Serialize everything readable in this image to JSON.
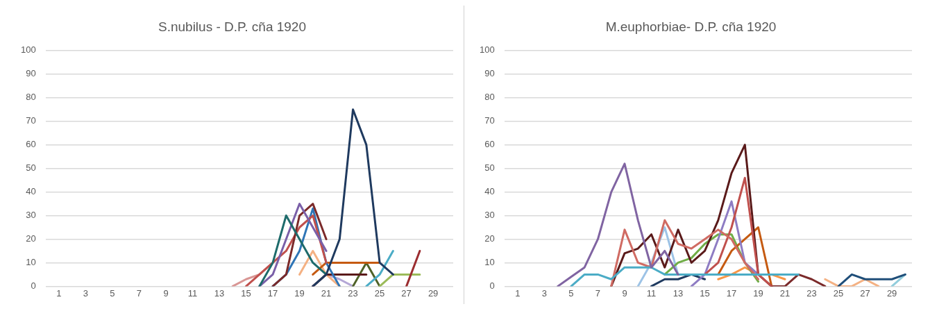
{
  "chart_data": [
    {
      "type": "line",
      "title": "S.nubilus - D.P. cña 1920",
      "xlim": [
        0,
        30.5
      ],
      "xticks": [
        1,
        3,
        5,
        7,
        9,
        11,
        13,
        15,
        17,
        19,
        21,
        23,
        25,
        27,
        29
      ],
      "ylim": [
        0,
        100
      ],
      "yticks": [
        0,
        10,
        20,
        30,
        40,
        50,
        60,
        70,
        80,
        90,
        100
      ],
      "grid": "y",
      "marker": "none",
      "line_style": "solid",
      "series": [
        {
          "color": "#1f3a5f",
          "x": [
            20,
            21,
            22,
            23,
            24,
            25,
            26
          ],
          "values": [
            0,
            5,
            20,
            75,
            60,
            10,
            5
          ]
        },
        {
          "color": "#1e6b6b",
          "x": [
            16,
            17,
            18,
            19,
            20,
            21
          ],
          "values": [
            0,
            10,
            30,
            20,
            10,
            5
          ]
        },
        {
          "color": "#7a5fa8",
          "x": [
            16,
            17,
            18,
            19,
            20,
            21
          ],
          "values": [
            0,
            5,
            20,
            35,
            25,
            15
          ]
        },
        {
          "color": "#7b2a2a",
          "x": [
            17,
            18,
            19,
            20,
            21
          ],
          "values": [
            0,
            5,
            30,
            35,
            20
          ]
        },
        {
          "color": "#c0504d",
          "x": [
            15,
            16,
            17,
            18,
            19,
            20,
            21
          ],
          "values": [
            0,
            5,
            10,
            15,
            25,
            30,
            10
          ]
        },
        {
          "color": "#2e75b6",
          "x": [
            17,
            18,
            19,
            20,
            21,
            22
          ],
          "values": [
            0,
            5,
            15,
            33,
            10,
            0
          ]
        },
        {
          "color": "#c55a11",
          "x": [
            20,
            21,
            22,
            23,
            24,
            25
          ],
          "values": [
            5,
            10,
            10,
            10,
            10,
            10
          ]
        },
        {
          "color": "#5a1a1a",
          "x": [
            20,
            21,
            22,
            23,
            24
          ],
          "values": [
            0,
            5,
            5,
            5,
            5
          ]
        },
        {
          "color": "#4bacc6",
          "x": [
            24,
            25,
            26
          ],
          "values": [
            0,
            5,
            15
          ]
        },
        {
          "color": "#9b2d30",
          "x": [
            27,
            28
          ],
          "values": [
            0,
            15
          ]
        },
        {
          "color": "#9bbb59",
          "x": [
            25,
            26,
            27,
            28
          ],
          "values": [
            0,
            5,
            5,
            5
          ]
        },
        {
          "color": "#d99694",
          "x": [
            14,
            15,
            16,
            17
          ],
          "values": [
            0,
            3,
            5,
            10
          ]
        },
        {
          "color": "#4f6228",
          "x": [
            23,
            24,
            25
          ],
          "values": [
            0,
            10,
            0
          ]
        },
        {
          "color": "#f4b183",
          "x": [
            19,
            20,
            21,
            22
          ],
          "values": [
            5,
            15,
            5,
            0
          ]
        },
        {
          "color": "#b4a7d6",
          "x": [
            20,
            21,
            22,
            23
          ],
          "values": [
            0,
            5,
            3,
            0
          ]
        }
      ]
    },
    {
      "type": "line",
      "title": "M.euphorbiae- D.P. cña 1920",
      "xlim": [
        0,
        30.5
      ],
      "xticks": [
        1,
        3,
        5,
        7,
        9,
        11,
        13,
        15,
        17,
        19,
        21,
        23,
        25,
        27,
        29
      ],
      "ylim": [
        0,
        100
      ],
      "yticks": [
        0,
        10,
        20,
        30,
        40,
        50,
        60,
        70,
        80,
        90,
        100
      ],
      "grid": "y",
      "marker": "none",
      "line_style": "solid",
      "series": [
        {
          "color": "#8064a2",
          "x": [
            4,
            5,
            6,
            7,
            8,
            9,
            10,
            11,
            12,
            13
          ],
          "values": [
            0,
            4,
            8,
            20,
            40,
            52,
            28,
            8,
            15,
            5
          ]
        },
        {
          "color": "#4bacc6",
          "x": [
            5,
            6,
            7,
            8,
            9,
            10,
            11,
            12,
            13,
            14,
            15,
            16,
            17,
            18,
            19,
            20,
            21,
            22
          ],
          "values": [
            0,
            5,
            5,
            3,
            8,
            8,
            8,
            5,
            5,
            5,
            5,
            5,
            5,
            5,
            5,
            5,
            5,
            5
          ]
        },
        {
          "color": "#d06b63",
          "x": [
            8,
            9,
            10,
            11,
            12,
            13,
            14,
            15,
            16,
            17,
            18,
            19
          ],
          "values": [
            0,
            24,
            10,
            8,
            28,
            18,
            16,
            20,
            24,
            20,
            10,
            3
          ]
        },
        {
          "color": "#c0504d",
          "x": [
            15,
            16,
            17,
            18,
            19,
            20
          ],
          "values": [
            5,
            10,
            25,
            46,
            5,
            0
          ]
        },
        {
          "color": "#5a1a1a",
          "x": [
            8,
            9,
            10,
            11,
            12,
            13,
            14,
            15,
            16,
            17,
            18,
            19,
            20
          ],
          "values": [
            0,
            14,
            16,
            22,
            8,
            24,
            10,
            15,
            28,
            48,
            60,
            5,
            0
          ]
        },
        {
          "color": "#8e7cc3",
          "x": [
            14,
            15,
            16,
            17,
            18,
            19
          ],
          "values": [
            0,
            5,
            20,
            36,
            10,
            5
          ]
        },
        {
          "color": "#c55a11",
          "x": [
            16,
            17,
            18,
            19,
            20
          ],
          "values": [
            5,
            15,
            20,
            25,
            0
          ]
        },
        {
          "color": "#70ad47",
          "x": [
            12,
            13,
            14,
            15,
            16,
            17,
            18,
            19
          ],
          "values": [
            5,
            10,
            12,
            18,
            22,
            22,
            10,
            2
          ]
        },
        {
          "color": "#1f4e79",
          "x": [
            25,
            26,
            27,
            28,
            29,
            30
          ],
          "values": [
            0,
            5,
            3,
            3,
            3,
            5
          ]
        },
        {
          "color": "#7b2a2a",
          "x": [
            20,
            21,
            22,
            23,
            24
          ],
          "values": [
            0,
            0,
            5,
            3,
            0
          ]
        },
        {
          "color": "#f4b183",
          "x": [
            24,
            25,
            26,
            27,
            28
          ],
          "values": [
            3,
            0,
            0,
            3,
            0
          ]
        },
        {
          "color": "#92cddc",
          "x": [
            29,
            30
          ],
          "values": [
            0,
            5
          ]
        },
        {
          "color": "#1f3a5f",
          "x": [
            11,
            12,
            13,
            14,
            15
          ],
          "values": [
            0,
            3,
            3,
            5,
            3
          ]
        },
        {
          "color": "#9dc3e6",
          "x": [
            10,
            11,
            12,
            13
          ],
          "values": [
            0,
            10,
            25,
            5
          ]
        },
        {
          "color": "#f79646",
          "x": [
            16,
            17,
            18,
            19,
            20,
            21
          ],
          "values": [
            3,
            5,
            8,
            5,
            5,
            3
          ]
        }
      ]
    }
  ]
}
